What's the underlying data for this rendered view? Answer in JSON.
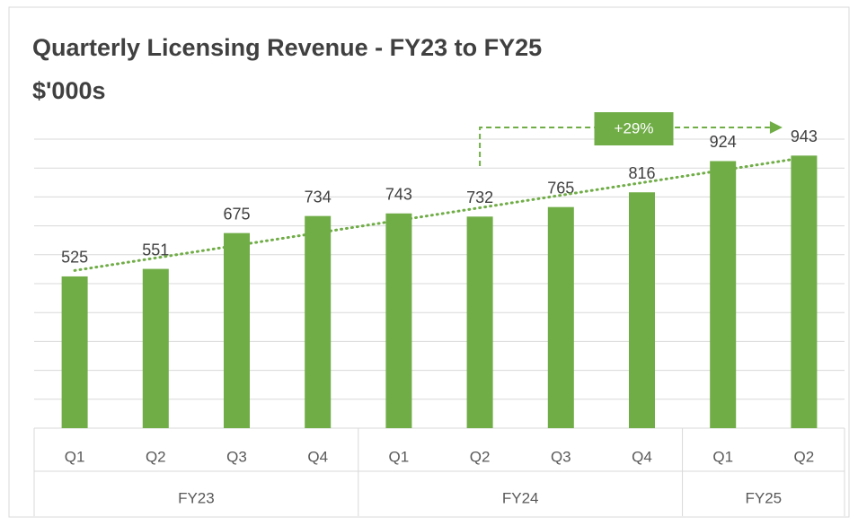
{
  "chart_data": {
    "type": "bar",
    "title": "Quarterly Licensing Revenue - FY23 to FY25",
    "subtitle": "$'000s",
    "categories": [
      "Q1",
      "Q2",
      "Q3",
      "Q4",
      "Q1",
      "Q2",
      "Q3",
      "Q4",
      "Q1",
      "Q2"
    ],
    "groups": [
      {
        "name": "FY23",
        "span": 4
      },
      {
        "name": "FY24",
        "span": 4
      },
      {
        "name": "FY25",
        "span": 2
      }
    ],
    "values": [
      525,
      551,
      675,
      734,
      743,
      732,
      765,
      816,
      924,
      943
    ],
    "color": "#70ad47",
    "ylim": [
      0,
      1000
    ],
    "yticks": [
      0,
      100,
      200,
      300,
      400,
      500,
      600,
      700,
      800,
      900,
      1000
    ],
    "grid": true,
    "trendline": true,
    "annotation": "+29%"
  }
}
